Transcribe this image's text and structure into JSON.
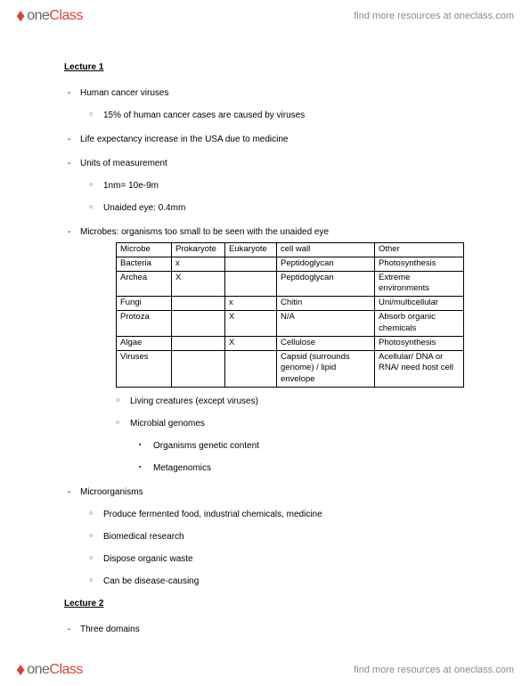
{
  "brand": {
    "one": "one",
    "class": "Class"
  },
  "header_link": "find more resources at oneclass.com",
  "footer_link": "find more resources at oneclass.com",
  "lec1": {
    "heading": "Lecture 1",
    "b1": "Human cancer viruses",
    "b1a": "15% of human cancer cases are caused by viruses",
    "b2": "Life expectancy increase in the USA due to medicine",
    "b3": "Units of measurement",
    "b3a": "1nm= 10e-9m",
    "b3b": "Unaided eye: 0.4mm",
    "b4": "Microbes: organisms too small to be seen with the unaided eye",
    "b5a": "Living creatures (except viruses)",
    "b5b": "Microbial genomes",
    "b5b1": "Organisms genetic content",
    "b5b2": "Metagenomics",
    "b6": "Microorganisms",
    "b6a": "Produce fermented food, industrial chemicals, medicine",
    "b6b": "Biomedical research",
    "b6c": "Dispose organic waste",
    "b6d": "Can be disease-causing"
  },
  "lec2": {
    "heading": "Lecture 2",
    "b1": "Three domains"
  },
  "table": {
    "h0": "Microbe",
    "h1": "Prokaryote",
    "h2": "Eukaryote",
    "h3": "cell wall",
    "h4": "Other",
    "r1c0": "Bacteria",
    "r1c1": "x",
    "r1c2": "",
    "r1c3": "Peptidoglycan",
    "r1c4": "Photosynthesis",
    "r2c0": "Archea",
    "r2c1": "X",
    "r2c2": "",
    "r2c3": "Peptidoglycan",
    "r2c4": "Extreme environments",
    "r3c0": "Fungi",
    "r3c1": "",
    "r3c2": "x",
    "r3c3": "Chitin",
    "r3c4": "Uni/multicellular",
    "r4c0": "Protoza",
    "r4c1": "",
    "r4c2": "X",
    "r4c3": "N/A",
    "r4c4": "Absorb organic chemicals",
    "r5c0": "Algae",
    "r5c1": "",
    "r5c2": "X",
    "r5c3": "Cellulose",
    "r5c4": "Photosynthesis",
    "r6c0": "Viruses",
    "r6c1": "",
    "r6c2": "",
    "r6c3": "Capsid (surrounds genome) / lipid envelope",
    "r6c4": "Acellular/ DNA or RNA/ need host cell"
  }
}
